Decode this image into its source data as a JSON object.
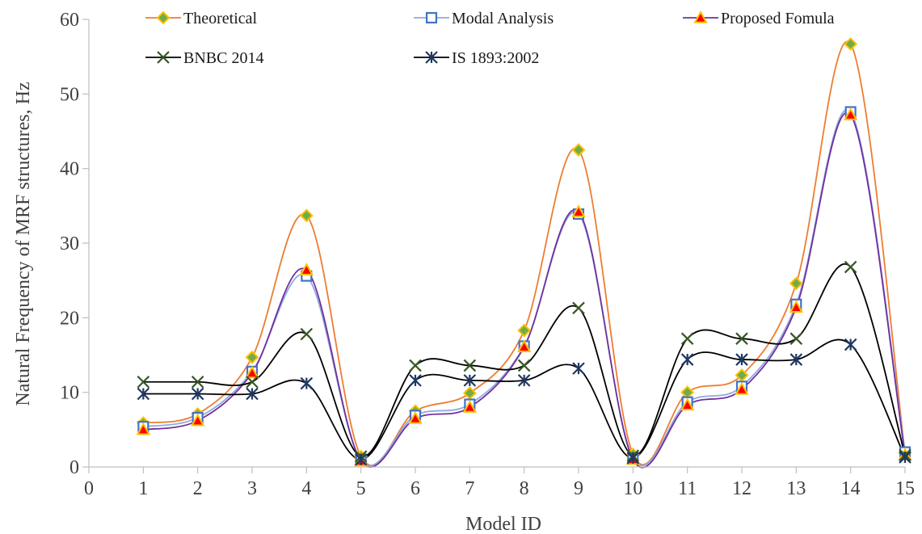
{
  "chart_data": {
    "type": "line",
    "title": "",
    "xlabel": "Model ID",
    "ylabel": "Natural Frequency of MRF structures, Hz",
    "xlim": [
      0,
      15
    ],
    "ylim": [
      0,
      60
    ],
    "x_ticks": [
      0,
      1,
      2,
      3,
      4,
      5,
      6,
      7,
      8,
      9,
      10,
      11,
      12,
      13,
      14,
      15
    ],
    "y_ticks": [
      0,
      10,
      20,
      30,
      40,
      50,
      60
    ],
    "x": [
      1,
      2,
      3,
      4,
      5,
      6,
      7,
      8,
      9,
      10,
      11,
      12,
      13,
      14,
      15
    ],
    "grid": false,
    "smooth": true,
    "legend_position": "top",
    "series": [
      {
        "name": "Theoretical",
        "color": "#ED7D31",
        "marker": "diamond",
        "marker_fill": "#70AD47",
        "marker_stroke": "#FFC000",
        "values": [
          5.9,
          7.1,
          14.7,
          33.7,
          1.4,
          7.5,
          9.9,
          18.3,
          42.5,
          1.7,
          10.0,
          12.3,
          24.6,
          56.7,
          1.9
        ]
      },
      {
        "name": "Modal Analysis",
        "color": "#8FAADC",
        "marker": "square",
        "marker_fill": "#FFFFFF",
        "marker_stroke": "#4472C4",
        "values": [
          5.4,
          6.6,
          12.8,
          25.6,
          0.9,
          6.9,
          8.4,
          16.2,
          33.9,
          1.2,
          8.7,
          10.8,
          21.8,
          47.6,
          2.0
        ]
      },
      {
        "name": "Proposed Fomula",
        "color": "#7030A0",
        "marker": "triangle",
        "marker_fill": "#FF0000",
        "marker_stroke": "#FFC000",
        "values": [
          5.0,
          6.2,
          12.6,
          26.4,
          0.8,
          6.5,
          8.0,
          16.1,
          34.2,
          1.0,
          8.3,
          10.4,
          21.4,
          47.2,
          1.6
        ]
      },
      {
        "name": "BNBC 2014",
        "color": "#000000",
        "marker": "x",
        "marker_fill": "none",
        "marker_stroke": "#375623",
        "values": [
          11.4,
          11.4,
          11.4,
          17.8,
          1.4,
          13.6,
          13.6,
          13.6,
          21.3,
          1.5,
          17.2,
          17.2,
          17.2,
          26.8,
          1.6
        ]
      },
      {
        "name": "IS 1893:2002",
        "color": "#000000",
        "marker": "asterisk",
        "marker_fill": "none",
        "marker_stroke": "#1F3864",
        "values": [
          9.8,
          9.8,
          9.8,
          11.2,
          1.0,
          11.6,
          11.6,
          11.6,
          13.2,
          1.2,
          14.4,
          14.4,
          14.4,
          16.4,
          1.3
        ]
      }
    ]
  }
}
